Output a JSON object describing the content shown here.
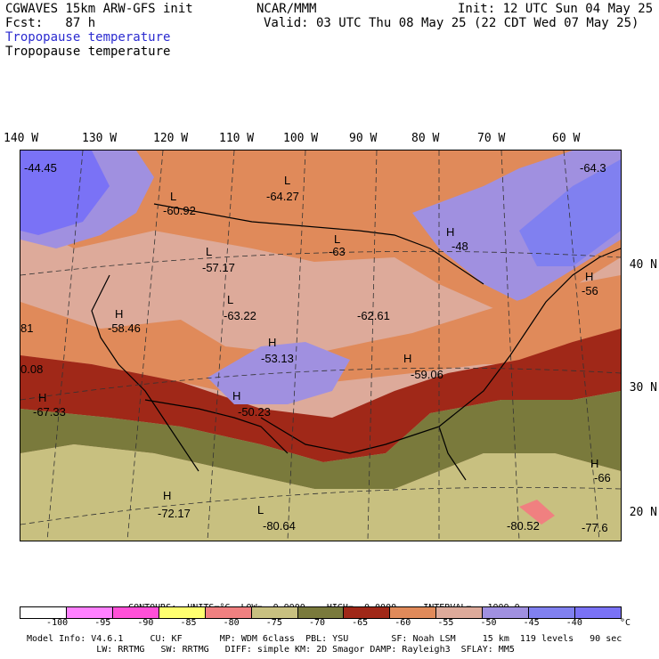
{
  "header": {
    "model": "CGWAVES 15km ARW-GFS init",
    "org": "NCAR/MMM",
    "init": "Init: 12 UTC Sun 04 May 25",
    "fcst": "Fcst:   87 h",
    "valid": "Valid: 03 UTC Thu 08 May 25 (22 CDT Wed 07 May 25)",
    "field_blue": "Tropopause temperature",
    "field_black": "Tropopause temperature"
  },
  "lon_labels": [
    "140 W",
    "130 W",
    "120 W",
    "110 W",
    "100 W",
    "90 W",
    "80 W",
    "70 W",
    "60 W"
  ],
  "lat_labels": [
    "40 N",
    "30 N",
    "20 N"
  ],
  "map_labels": [
    {
      "hl": "",
      "value": "-44.45"
    },
    {
      "hl": "L",
      "value": "-60.92"
    },
    {
      "hl": "L",
      "value": "-64.27"
    },
    {
      "hl": "",
      "value": "-64.3"
    },
    {
      "hl": "H",
      "value": "-48"
    },
    {
      "hl": "L",
      "value": "-63"
    },
    {
      "hl": "L",
      "value": "-57.17"
    },
    {
      "hl": "H",
      "value": "-56"
    },
    {
      "hl": "L",
      "value": "-63.22"
    },
    {
      "hl": "",
      "value": "-62.61"
    },
    {
      "hl": "H",
      "value": "-58.46"
    },
    {
      "hl": "",
      "value": "81"
    },
    {
      "hl": "H",
      "value": "-53.13"
    },
    {
      "hl": "",
      "value": "0.08"
    },
    {
      "hl": "H",
      "value": "-59.06"
    },
    {
      "hl": "H",
      "value": "-50.23"
    },
    {
      "hl": "H",
      "value": "-67.33"
    },
    {
      "hl": "H",
      "value": "-66"
    },
    {
      "hl": "H",
      "value": "-72.17"
    },
    {
      "hl": "L",
      "value": "-80.64"
    },
    {
      "hl": "",
      "value": "-80.52"
    },
    {
      "hl": "",
      "value": "-77.6"
    }
  ],
  "contours": {
    "contours_label": "CONTOURS:",
    "units": "UNITS=°C",
    "low": "LOW=  0.0000",
    "high": "HIGH=  0.0000",
    "interval": "INTERVAL=   1000.0"
  },
  "colorbar": {
    "colors": [
      "#ffffff",
      "#ff80ff",
      "#ff50d8",
      "#ffff70",
      "#f08080",
      "#c8c080",
      "#7a7a3c",
      "#a02818",
      "#e08a5a",
      "#ddaa9a",
      "#a090e0",
      "#8080f0",
      "#7a72f6"
    ],
    "ticks": [
      "-100",
      "-95",
      "-90",
      "-85",
      "-80",
      "-75",
      "-70",
      "-65",
      "-60",
      "-55",
      "-50",
      "-45",
      "-40"
    ],
    "unit": "°C"
  },
  "info": {
    "line1": "Model Info: V4.6.1     CU: KF       MP: WDM 6class  PBL: YSU        SF: Noah LSM     15 km  119 levels   90 sec",
    "line2": "             LW: RRTMG   SW: RRTMG   DIFF: simple KM: 2D Smagor DAMP: Rayleigh3  SFLAY: MM5"
  }
}
